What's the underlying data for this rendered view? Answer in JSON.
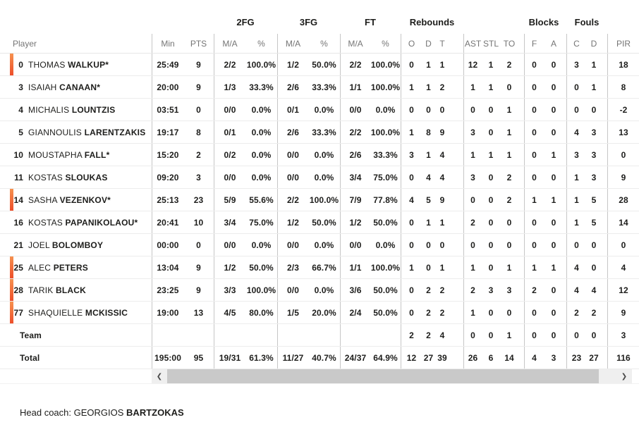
{
  "table": {
    "group_headers": {
      "fg2": "2FG",
      "fg3": "3FG",
      "ft": "FT",
      "rebounds": "Rebounds",
      "blocks": "Blocks",
      "fouls": "Fouls"
    },
    "column_headers": {
      "player": "Player",
      "min": "Min",
      "pts": "PTS",
      "ma": "M/A",
      "pct": "%",
      "o": "O",
      "d": "D",
      "t": "T",
      "ast": "AST",
      "stl": "STL",
      "to": "TO",
      "f": "F",
      "a": "A",
      "c": "C",
      "pir": "PIR"
    }
  },
  "rows": [
    {
      "type": "player",
      "num": "0",
      "first": "THOMAS",
      "last": "WALKUP*",
      "on_court": true,
      "min": "25:49",
      "pts": "9",
      "fg2_ma": "2/2",
      "fg2_pct": "100.0%",
      "fg3_ma": "1/2",
      "fg3_pct": "50.0%",
      "ft_ma": "2/2",
      "ft_pct": "100.0%",
      "reb_o": "0",
      "reb_d": "1",
      "reb_t": "1",
      "ast": "12",
      "stl": "1",
      "to": "2",
      "blk_f": "0",
      "blk_a": "0",
      "foul_c": "3",
      "foul_d": "1",
      "pir": "18"
    },
    {
      "type": "player",
      "num": "3",
      "first": "ISAIAH",
      "last": "CANAAN*",
      "on_court": false,
      "min": "20:00",
      "pts": "9",
      "fg2_ma": "1/3",
      "fg2_pct": "33.3%",
      "fg3_ma": "2/6",
      "fg3_pct": "33.3%",
      "ft_ma": "1/1",
      "ft_pct": "100.0%",
      "reb_o": "1",
      "reb_d": "1",
      "reb_t": "2",
      "ast": "1",
      "stl": "1",
      "to": "0",
      "blk_f": "0",
      "blk_a": "0",
      "foul_c": "0",
      "foul_d": "1",
      "pir": "8"
    },
    {
      "type": "player",
      "num": "4",
      "first": "MICHALIS",
      "last": "LOUNTZIS",
      "on_court": false,
      "min": "03:51",
      "pts": "0",
      "fg2_ma": "0/0",
      "fg2_pct": "0.0%",
      "fg3_ma": "0/1",
      "fg3_pct": "0.0%",
      "ft_ma": "0/0",
      "ft_pct": "0.0%",
      "reb_o": "0",
      "reb_d": "0",
      "reb_t": "0",
      "ast": "0",
      "stl": "0",
      "to": "1",
      "blk_f": "0",
      "blk_a": "0",
      "foul_c": "0",
      "foul_d": "0",
      "pir": "-2"
    },
    {
      "type": "player",
      "num": "5",
      "first": "GIANNOULIS",
      "last": "LARENTZAKIS",
      "on_court": false,
      "min": "19:17",
      "pts": "8",
      "fg2_ma": "0/1",
      "fg2_pct": "0.0%",
      "fg3_ma": "2/6",
      "fg3_pct": "33.3%",
      "ft_ma": "2/2",
      "ft_pct": "100.0%",
      "reb_o": "1",
      "reb_d": "8",
      "reb_t": "9",
      "ast": "3",
      "stl": "0",
      "to": "1",
      "blk_f": "0",
      "blk_a": "0",
      "foul_c": "4",
      "foul_d": "3",
      "pir": "13"
    },
    {
      "type": "player",
      "num": "10",
      "first": "MOUSTAPHA",
      "last": "FALL*",
      "on_court": false,
      "min": "15:20",
      "pts": "2",
      "fg2_ma": "0/2",
      "fg2_pct": "0.0%",
      "fg3_ma": "0/0",
      "fg3_pct": "0.0%",
      "ft_ma": "2/6",
      "ft_pct": "33.3%",
      "reb_o": "3",
      "reb_d": "1",
      "reb_t": "4",
      "ast": "1",
      "stl": "1",
      "to": "1",
      "blk_f": "0",
      "blk_a": "1",
      "foul_c": "3",
      "foul_d": "3",
      "pir": "0"
    },
    {
      "type": "player",
      "num": "11",
      "first": "KOSTAS",
      "last": "SLOUKAS",
      "on_court": false,
      "min": "09:20",
      "pts": "3",
      "fg2_ma": "0/0",
      "fg2_pct": "0.0%",
      "fg3_ma": "0/0",
      "fg3_pct": "0.0%",
      "ft_ma": "3/4",
      "ft_pct": "75.0%",
      "reb_o": "0",
      "reb_d": "4",
      "reb_t": "4",
      "ast": "3",
      "stl": "0",
      "to": "2",
      "blk_f": "0",
      "blk_a": "0",
      "foul_c": "1",
      "foul_d": "3",
      "pir": "9"
    },
    {
      "type": "player",
      "num": "14",
      "first": "SASHA",
      "last": "VEZENKOV*",
      "on_court": true,
      "min": "25:13",
      "pts": "23",
      "fg2_ma": "5/9",
      "fg2_pct": "55.6%",
      "fg3_ma": "2/2",
      "fg3_pct": "100.0%",
      "ft_ma": "7/9",
      "ft_pct": "77.8%",
      "reb_o": "4",
      "reb_d": "5",
      "reb_t": "9",
      "ast": "0",
      "stl": "0",
      "to": "2",
      "blk_f": "1",
      "blk_a": "1",
      "foul_c": "1",
      "foul_d": "5",
      "pir": "28"
    },
    {
      "type": "player",
      "num": "16",
      "first": "KOSTAS",
      "last": "PAPANIKOLAOU*",
      "on_court": false,
      "min": "20:41",
      "pts": "10",
      "fg2_ma": "3/4",
      "fg2_pct": "75.0%",
      "fg3_ma": "1/2",
      "fg3_pct": "50.0%",
      "ft_ma": "1/2",
      "ft_pct": "50.0%",
      "reb_o": "0",
      "reb_d": "1",
      "reb_t": "1",
      "ast": "2",
      "stl": "0",
      "to": "0",
      "blk_f": "0",
      "blk_a": "0",
      "foul_c": "1",
      "foul_d": "5",
      "pir": "14"
    },
    {
      "type": "player",
      "num": "21",
      "first": "JOEL",
      "last": "BOLOMBOY",
      "on_court": false,
      "min": "00:00",
      "pts": "0",
      "fg2_ma": "0/0",
      "fg2_pct": "0.0%",
      "fg3_ma": "0/0",
      "fg3_pct": "0.0%",
      "ft_ma": "0/0",
      "ft_pct": "0.0%",
      "reb_o": "0",
      "reb_d": "0",
      "reb_t": "0",
      "ast": "0",
      "stl": "0",
      "to": "0",
      "blk_f": "0",
      "blk_a": "0",
      "foul_c": "0",
      "foul_d": "0",
      "pir": "0"
    },
    {
      "type": "player",
      "num": "25",
      "first": "ALEC",
      "last": "PETERS",
      "on_court": true,
      "min": "13:04",
      "pts": "9",
      "fg2_ma": "1/2",
      "fg2_pct": "50.0%",
      "fg3_ma": "2/3",
      "fg3_pct": "66.7%",
      "ft_ma": "1/1",
      "ft_pct": "100.0%",
      "reb_o": "1",
      "reb_d": "0",
      "reb_t": "1",
      "ast": "1",
      "stl": "0",
      "to": "1",
      "blk_f": "1",
      "blk_a": "1",
      "foul_c": "4",
      "foul_d": "0",
      "pir": "4"
    },
    {
      "type": "player",
      "num": "28",
      "first": "TARIK",
      "last": "BLACK",
      "on_court": true,
      "min": "23:25",
      "pts": "9",
      "fg2_ma": "3/3",
      "fg2_pct": "100.0%",
      "fg3_ma": "0/0",
      "fg3_pct": "0.0%",
      "ft_ma": "3/6",
      "ft_pct": "50.0%",
      "reb_o": "0",
      "reb_d": "2",
      "reb_t": "2",
      "ast": "2",
      "stl": "3",
      "to": "3",
      "blk_f": "2",
      "blk_a": "0",
      "foul_c": "4",
      "foul_d": "4",
      "pir": "12"
    },
    {
      "type": "player",
      "num": "77",
      "first": "SHAQUIELLE",
      "last": "MCKISSIC",
      "on_court": true,
      "min": "19:00",
      "pts": "13",
      "fg2_ma": "4/5",
      "fg2_pct": "80.0%",
      "fg3_ma": "1/5",
      "fg3_pct": "20.0%",
      "ft_ma": "2/4",
      "ft_pct": "50.0%",
      "reb_o": "0",
      "reb_d": "2",
      "reb_t": "2",
      "ast": "1",
      "stl": "0",
      "to": "0",
      "blk_f": "0",
      "blk_a": "0",
      "foul_c": "2",
      "foul_d": "2",
      "pir": "9"
    },
    {
      "type": "team",
      "label": "Team",
      "min": "",
      "pts": "",
      "fg2_ma": "",
      "fg2_pct": "",
      "fg3_ma": "",
      "fg3_pct": "",
      "ft_ma": "",
      "ft_pct": "",
      "reb_o": "2",
      "reb_d": "2",
      "reb_t": "4",
      "ast": "0",
      "stl": "0",
      "to": "1",
      "blk_f": "0",
      "blk_a": "0",
      "foul_c": "0",
      "foul_d": "0",
      "pir": "3"
    },
    {
      "type": "total",
      "label": "Total",
      "min": "195:00",
      "pts": "95",
      "fg2_ma": "19/31",
      "fg2_pct": "61.3%",
      "fg3_ma": "11/27",
      "fg3_pct": "40.7%",
      "ft_ma": "24/37",
      "ft_pct": "64.9%",
      "reb_o": "12",
      "reb_d": "27",
      "reb_t": "39",
      "ast": "26",
      "stl": "6",
      "to": "14",
      "blk_f": "4",
      "blk_a": "3",
      "foul_c": "23",
      "foul_d": "27",
      "pir": "116"
    }
  ],
  "scrollbar": {
    "left_glyph": "❮",
    "right_glyph": "❯"
  },
  "footer": {
    "label": "Head coach:",
    "coach_first": "GEORGIOS",
    "coach_last": "BARTZOKAS"
  },
  "colors": {
    "on_court_gradient_top": "#f6914f",
    "on_court_gradient_bottom": "#ed4e2a"
  }
}
